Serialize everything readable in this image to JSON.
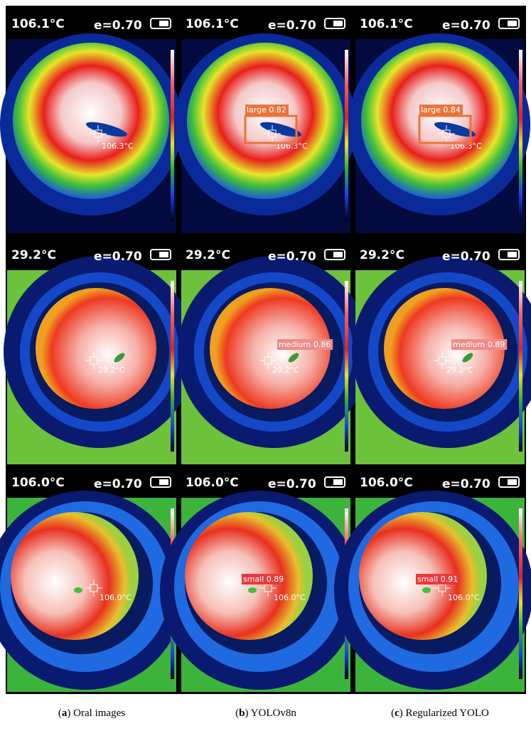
{
  "rows": [
    {
      "cells": [
        {
          "temperature": "106.1°C",
          "emissivity": "e=0.70",
          "spot_label": "106.3°C"
        },
        {
          "temperature": "106.1°C",
          "emissivity": "e=0.70",
          "spot_label": "106.3°C",
          "detection": "large 0.82"
        },
        {
          "temperature": "106.1°C",
          "emissivity": "e=0.70",
          "spot_label": "106.3°C",
          "detection": "large 0.84"
        }
      ]
    },
    {
      "cells": [
        {
          "temperature": "29.2°C",
          "emissivity": "e=0.70",
          "spot_label": "29.2°C"
        },
        {
          "temperature": "29.2°C",
          "emissivity": "e=0.70",
          "spot_label": "29.2°C",
          "detection": "medium 0.86"
        },
        {
          "temperature": "29.2°C",
          "emissivity": "e=0.70",
          "spot_label": "29.2°C",
          "detection": "medium 0.89"
        }
      ]
    },
    {
      "cells": [
        {
          "temperature": "106.0°C",
          "emissivity": "e=0.70",
          "spot_label": "106.0°C"
        },
        {
          "temperature": "106.0°C",
          "emissivity": "e=0.70",
          "spot_label": "106.0°C",
          "detection": "small 0.89"
        },
        {
          "temperature": "106.0°C",
          "emissivity": "e=0.70",
          "spot_label": "106.0°C",
          "detection": "small 0.91"
        }
      ]
    }
  ],
  "captions": [
    {
      "open": "(",
      "letter": "a",
      "rest": ") Oral images"
    },
    {
      "open": "(",
      "letter": "b",
      "rest": ") YOLOv8n"
    },
    {
      "open": "(",
      "letter": "c",
      "rest": ") Regularized YOLO"
    }
  ]
}
